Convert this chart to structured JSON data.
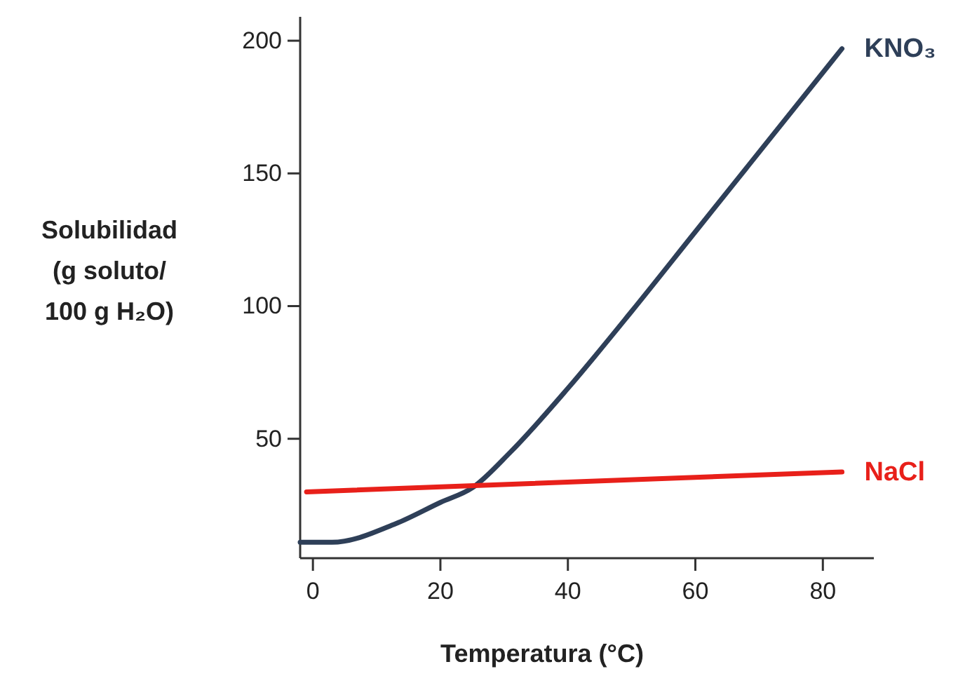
{
  "chart_data": {
    "type": "line",
    "xlabel": "Temperatura (°C)",
    "ylabel": "Solubilidad\n(g soluto/\n100 g H₂O)",
    "xlim": [
      -2,
      88
    ],
    "ylim": [
      5,
      209
    ],
    "xticks": [
      0,
      20,
      40,
      60,
      80
    ],
    "yticks": [
      50,
      100,
      150,
      200
    ],
    "grid": false,
    "legend": false,
    "marker": "none",
    "line_style": "solid",
    "series": [
      {
        "name": "KNO₃",
        "color": "#2e3f58",
        "x": [
          -2,
          3,
          13,
          20,
          25,
          31,
          40,
          50,
          60,
          68,
          80,
          83
        ],
        "values": [
          11,
          11,
          18,
          26,
          31.5,
          45,
          69,
          98,
          128,
          152,
          188,
          197
        ]
      },
      {
        "name": "NaCl",
        "color": "#e8201a",
        "x": [
          -1,
          83
        ],
        "values": [
          30,
          37.5
        ]
      }
    ]
  }
}
